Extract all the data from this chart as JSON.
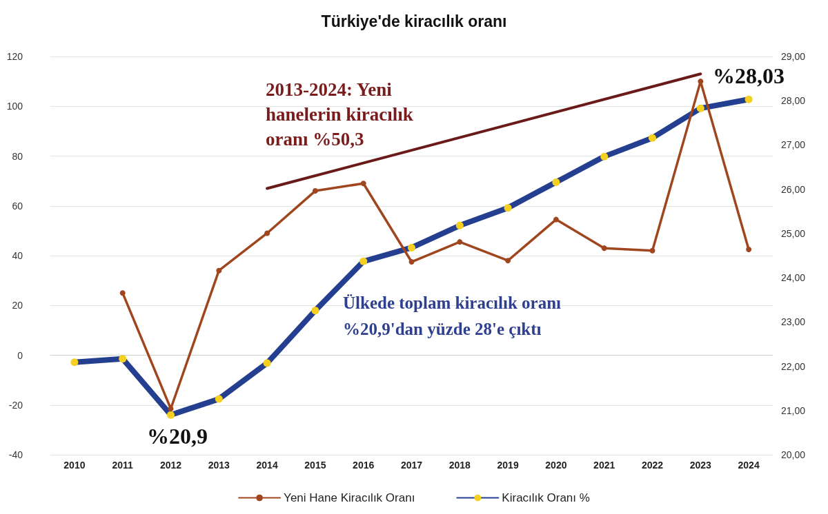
{
  "chart_data": {
    "type": "line",
    "title": "Türkiye'de kiracılık oranı",
    "categories": [
      "2010",
      "2011",
      "2012",
      "2013",
      "2014",
      "2015",
      "2016",
      "2017",
      "2018",
      "2019",
      "2020",
      "2021",
      "2022",
      "2023",
      "2024"
    ],
    "series": [
      {
        "name": "Yeni Hane Kiracılık Oranı",
        "color": "#a0461e",
        "marker": "circle",
        "values": [
          null,
          25,
          -21.5,
          34,
          49,
          66,
          69,
          37.5,
          45.5,
          38,
          54.5,
          43,
          42,
          110,
          42.5
        ]
      },
      {
        "name": "Kiracılık Oranı %",
        "color": "#243f8f",
        "axis": "y2",
        "marker": "circle",
        "values": [
          22.09,
          22.17,
          20.9,
          21.26,
          22.07,
          23.26,
          24.37,
          24.68,
          25.18,
          25.58,
          26.16,
          26.74,
          27.16,
          27.83,
          28.03
        ]
      },
      {
        "type": "line",
        "color": "#6b1a1a",
        "marker": "none",
        "values": [
          null,
          null,
          null,
          null,
          67,
          null,
          null,
          null,
          null,
          null,
          null,
          null,
          null,
          113,
          null
        ]
      }
    ],
    "ylim": [
      -40,
      120
    ],
    "yticks": [
      -40,
      -20,
      0,
      20,
      40,
      60,
      80,
      100,
      120
    ],
    "y2lim": [
      20,
      29
    ],
    "y2ticks": [
      {
        "value": 20,
        "label": "20,00"
      },
      {
        "value": 21,
        "label": "21,00"
      },
      {
        "value": 22,
        "label": "22,00"
      },
      {
        "value": 23,
        "label": "23,00"
      },
      {
        "value": 24,
        "label": "24,00"
      },
      {
        "value": 25,
        "label": "25,00"
      },
      {
        "value": 26,
        "label": "26,00"
      },
      {
        "value": 27,
        "label": "27,00"
      },
      {
        "value": 28,
        "label": "28,00"
      },
      {
        "value": 29,
        "label": "29,00"
      }
    ],
    "annotations": [
      "2013-2024: Yeni\nhanelerin kiracılık\noranı %50,3",
      "Ülkede toplam kiracılık oranı\n%20,9'dan yüzde 28'e çıktı",
      "%20,9",
      "%28,03"
    ],
    "legend": "bottom",
    "grid": "y"
  }
}
